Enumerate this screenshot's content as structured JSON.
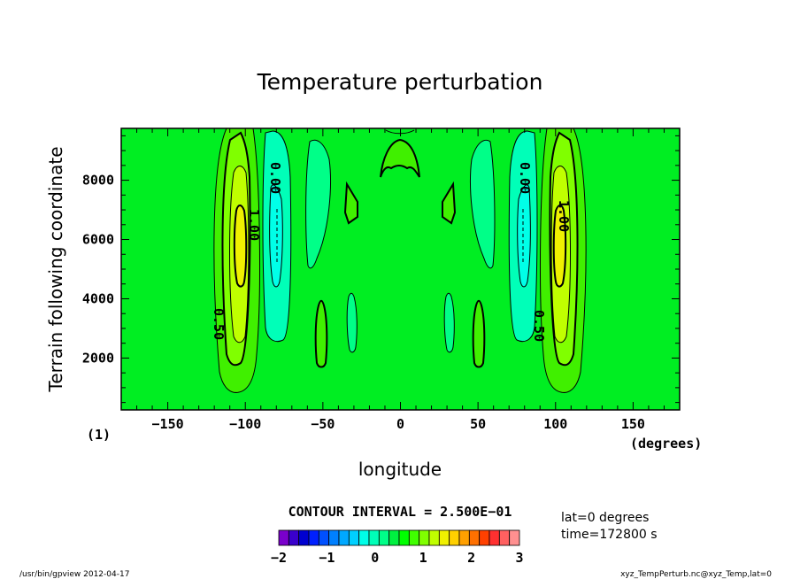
{
  "chart_data": {
    "type": "heatmap",
    "title": "Temperature perturbation",
    "xlabel": "longitude",
    "ylabel": "Terrain following coordinate",
    "xlim": [
      -180,
      180
    ],
    "ylim": [
      250,
      9750
    ],
    "x_ticks": [
      "−150",
      "−100",
      "−50",
      "0",
      "50",
      "100",
      "150"
    ],
    "x_tick_values": [
      -150,
      -100,
      -50,
      0,
      50,
      100,
      150
    ],
    "y_ticks": [
      "2000",
      "4000",
      "6000",
      "8000"
    ],
    "y_tick_values": [
      2000,
      4000,
      6000,
      8000
    ],
    "x_unit": "(degrees)",
    "panel_label": "(1)",
    "contour_interval_text": "CONTOUR INTERVAL = 2.500E−01",
    "contour_labels": [
      "0.00",
      "1.00",
      "0.50",
      "0.00",
      "1.00",
      "0.50"
    ],
    "colorbar": {
      "ticks": [
        "−2",
        "−1",
        "0",
        "1",
        "2",
        "3"
      ],
      "tick_values": [
        -2,
        -1,
        0,
        1,
        2,
        3
      ],
      "min": -2,
      "max": 3,
      "step": 0.25,
      "colors": [
        "#7a00cc",
        "#3a00cc",
        "#0000d0",
        "#0020ff",
        "#0050ff",
        "#0080ff",
        "#00a8ff",
        "#00d0ff",
        "#00ffe8",
        "#00ffb8",
        "#00ff88",
        "#00f040",
        "#00ff00",
        "#40ff00",
        "#80ff00",
        "#c0ff00",
        "#f0f000",
        "#ffd000",
        "#ffa000",
        "#ff7000",
        "#ff4000",
        "#ff3030",
        "#ff6060",
        "#ff9090"
      ]
    },
    "features": [
      {
        "lon": -100,
        "peak": 1.25,
        "kind": "warm"
      },
      {
        "lon": -78,
        "peak": -0.75,
        "kind": "cold"
      },
      {
        "lon": -52,
        "peak": -0.25,
        "kind": "cold"
      },
      {
        "lon": -52,
        "peak": 0.25,
        "kind": "warm-low"
      },
      {
        "lon": -30,
        "peak": 0.25,
        "kind": "warm"
      },
      {
        "lon": 0,
        "peak": 0.25,
        "kind": "warm-top"
      },
      {
        "lon": 30,
        "peak": 0.25,
        "kind": "warm"
      },
      {
        "lon": 52,
        "peak": -0.25,
        "kind": "cold"
      },
      {
        "lon": 52,
        "peak": 0.25,
        "kind": "warm-low"
      },
      {
        "lon": 78,
        "peak": -0.75,
        "kind": "cold"
      },
      {
        "lon": 100,
        "peak": 1.25,
        "kind": "warm"
      }
    ]
  },
  "info": {
    "lat": "lat=0  degrees",
    "time": "time=172800 s"
  },
  "footer": {
    "left": "/usr/bin/gpview  2012-04-17",
    "right": "xyz_TempPerturb.nc@xyz_Temp,lat=0"
  }
}
